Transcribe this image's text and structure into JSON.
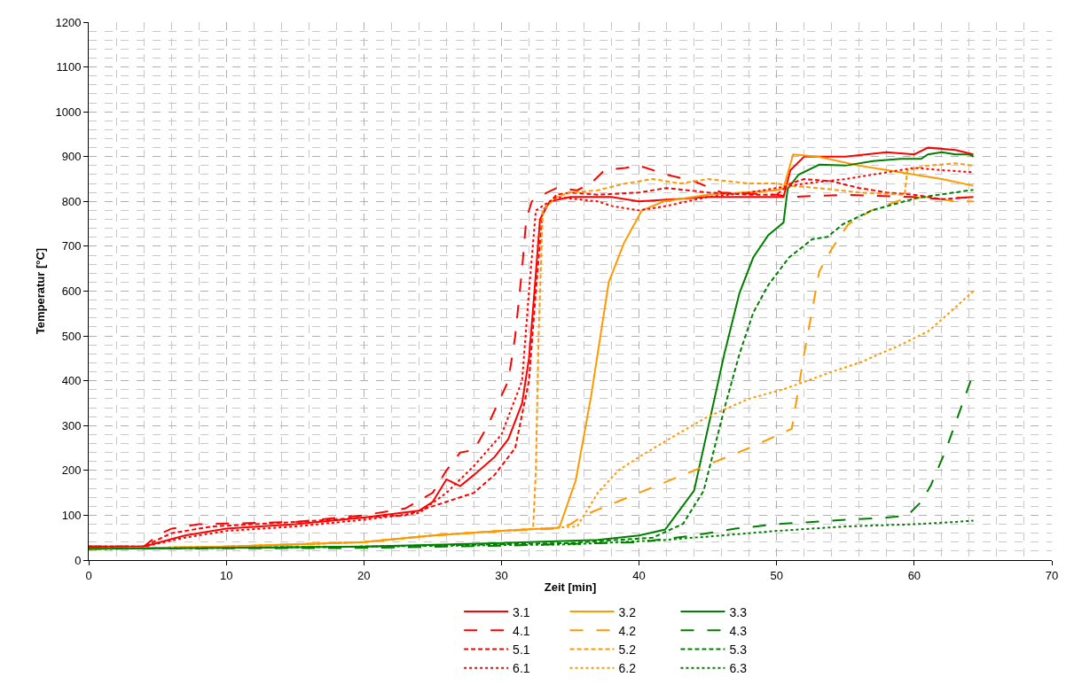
{
  "chart_data": {
    "type": "line",
    "xlabel": "Zeit [min]",
    "ylabel": "Temperatur [°C]",
    "xlim": [
      0,
      70
    ],
    "xticks": [
      0,
      10,
      20,
      30,
      40,
      50,
      60,
      70
    ],
    "ylim": [
      0,
      1200
    ],
    "yticks": [
      0,
      100,
      200,
      300,
      400,
      500,
      600,
      700,
      800,
      900,
      1000,
      1100,
      1200
    ],
    "grid": true,
    "legend": "bottom",
    "marker": "none",
    "series": [
      {
        "name": "3.1",
        "color": "#ff0000",
        "line_style": "solid",
        "x": [
          0,
          4,
          7,
          10,
          15,
          20,
          24,
          25,
          26,
          27,
          28,
          29.5,
          30.5,
          31.5,
          32,
          32.4,
          32.8,
          33.5,
          35,
          38,
          40,
          45,
          50.5,
          51,
          52,
          55,
          58,
          60,
          61,
          63,
          64.3
        ],
        "values": [
          30,
          30,
          55,
          70,
          80,
          95,
          110,
          130,
          180,
          165,
          190,
          230,
          270,
          350,
          450,
          600,
          760,
          800,
          810,
          810,
          800,
          810,
          810,
          870,
          900,
          900,
          910,
          905,
          920,
          915,
          905
        ]
      },
      {
        "name": "3.2",
        "color": "#ff9900",
        "line_style": "solid",
        "x": [
          0,
          10,
          20,
          25,
          30,
          33,
          34.2,
          35.4,
          36.5,
          37.8,
          38.9,
          40.2,
          41.8,
          45,
          50,
          50.5,
          51.2,
          53,
          56,
          60,
          62,
          64.3
        ],
        "values": [
          25,
          30,
          40,
          55,
          65,
          70,
          72,
          178,
          363,
          620,
          707,
          780,
          800,
          815,
          825,
          830,
          905,
          900,
          880,
          860,
          850,
          835
        ]
      },
      {
        "name": "3.3",
        "color": "#008000",
        "line_style": "solid",
        "x": [
          0,
          10,
          20,
          30,
          37,
          40,
          41.9,
          44.0,
          45.1,
          46.2,
          47.3,
          48.3,
          49.4,
          50.5,
          50.8,
          51.6,
          53.1,
          55,
          57,
          59,
          60.5,
          61,
          62,
          63,
          64,
          64.3
        ],
        "values": [
          25,
          27,
          30,
          38,
          45,
          55,
          68,
          155,
          307,
          460,
          596,
          675,
          725,
          753,
          828,
          860,
          882,
          880,
          890,
          895,
          895,
          905,
          910,
          905,
          905,
          900
        ]
      },
      {
        "name": "4.1",
        "color": "#ff0000",
        "line_style": "longdash",
        "x": [
          0,
          4,
          5,
          6,
          8,
          15,
          20,
          23,
          25,
          26,
          27,
          28,
          29,
          30.5,
          31,
          31.5,
          31.8,
          32.2,
          33,
          34,
          35.5,
          36.5,
          37.5,
          39,
          40,
          42,
          44,
          46,
          50,
          51,
          55,
          60,
          62,
          64.3
        ],
        "values": [
          30,
          30,
          55,
          70,
          80,
          85,
          100,
          115,
          150,
          200,
          240,
          245,
          300,
          400,
          500,
          650,
          760,
          800,
          815,
          830,
          825,
          840,
          870,
          875,
          880,
          860,
          845,
          820,
          815,
          810,
          815,
          810,
          805,
          810
        ]
      },
      {
        "name": "4.2",
        "color": "#ff9900",
        "line_style": "longdash",
        "x": [
          0,
          10,
          20,
          25,
          30,
          34,
          35,
          36,
          40,
          44,
          48,
          51.1,
          52.0,
          53.1,
          54.0,
          55.2,
          56.9,
          59.1,
          61,
          63,
          64.3
        ],
        "values": [
          25,
          30,
          40,
          55,
          65,
          70,
          80,
          100,
          150,
          200,
          250,
          293,
          460,
          644,
          694,
          749,
          780,
          804,
          810,
          800,
          800
        ]
      },
      {
        "name": "4.3",
        "color": "#008000",
        "line_style": "longdash",
        "x": [
          0,
          20,
          30,
          40,
          44,
          47,
          50,
          54,
          58,
          59.5,
          60.5,
          61.2,
          62.3,
          64.1
        ],
        "values": [
          25,
          27,
          32,
          40,
          55,
          70,
          80,
          88,
          95,
          99,
          130,
          166,
          246,
          400
        ]
      },
      {
        "name": "5.1",
        "color": "#ff0000",
        "line_style": "dash",
        "x": [
          0,
          4,
          6,
          9,
          15,
          20,
          23,
          24,
          26,
          28,
          29.5,
          31,
          32,
          32.5,
          33,
          34,
          35,
          37,
          40,
          42,
          45,
          48,
          50,
          51,
          52,
          54,
          56,
          58,
          60,
          62,
          64.3
        ],
        "values": [
          30,
          30,
          60,
          75,
          85,
          95,
          100,
          110,
          130,
          150,
          190,
          250,
          400,
          600,
          780,
          815,
          820,
          815,
          820,
          830,
          820,
          815,
          815,
          840,
          850,
          845,
          830,
          820,
          815,
          805,
          810
        ]
      },
      {
        "name": "5.2",
        "color": "#ff9900",
        "line_style": "dash",
        "x": [
          0,
          10,
          20,
          25,
          30,
          32.3,
          32.5,
          32.7,
          33,
          34,
          35,
          37,
          39,
          41,
          43,
          45,
          48,
          50,
          51,
          53,
          56,
          59.3,
          59.5,
          61,
          63,
          64.3
        ],
        "values": [
          25,
          30,
          40,
          55,
          65,
          70,
          200,
          500,
          780,
          810,
          820,
          825,
          840,
          850,
          840,
          850,
          840,
          840,
          835,
          830,
          820,
          815,
          870,
          880,
          885,
          880
        ]
      },
      {
        "name": "5.3",
        "color": "#008000",
        "line_style": "dash",
        "x": [
          0,
          20,
          35,
          41,
          43.2,
          44.7,
          46.2,
          47.3,
          48.3,
          49.4,
          50.9,
          52.6,
          53.7,
          54.8,
          56.9,
          60.2,
          64.3
        ],
        "values": [
          25,
          30,
          38,
          50,
          81,
          155,
          338,
          460,
          552,
          614,
          675,
          716,
          721,
          749,
          780,
          808,
          826
        ]
      },
      {
        "name": "6.1",
        "color": "#ff0000",
        "line_style": "dot",
        "x": [
          0,
          4,
          7,
          10,
          15,
          20,
          24,
          26,
          28,
          30,
          31.5,
          32,
          32.5,
          34,
          37,
          38,
          40,
          42,
          45,
          48,
          50,
          52,
          55,
          57,
          60,
          62,
          64.3
        ],
        "values": [
          30,
          30,
          50,
          65,
          75,
          90,
          105,
          150,
          210,
          280,
          400,
          600,
          780,
          810,
          800,
          790,
          780,
          790,
          810,
          820,
          830,
          840,
          850,
          860,
          875,
          870,
          865
        ]
      },
      {
        "name": "6.2",
        "color": "#ff9900",
        "line_style": "dot",
        "x": [
          0,
          10,
          20,
          25,
          30,
          35.5,
          37,
          38.5,
          40,
          41.9,
          45,
          48,
          50.5,
          54,
          56,
          59,
          61,
          62.5,
          64.3
        ],
        "values": [
          25,
          30,
          40,
          55,
          65,
          75,
          150,
          200,
          230,
          265,
          320,
          360,
          381,
          420,
          440,
          480,
          510,
          550,
          600
        ]
      },
      {
        "name": "6.3",
        "color": "#008000",
        "line_style": "dot",
        "x": [
          0,
          20,
          35,
          42,
          46,
          50,
          55,
          60,
          63,
          64.3
        ],
        "values": [
          25,
          30,
          35,
          45,
          55,
          65,
          75,
          80,
          85,
          88
        ]
      }
    ]
  }
}
